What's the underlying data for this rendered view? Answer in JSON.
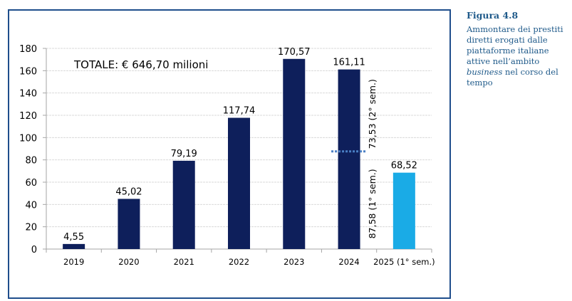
{
  "figure": {
    "label": "Figura 4.8",
    "text_before": "Ammontare dei prestiti diretti erogati dalle piattaforme italiane attive nell’ambito ",
    "text_italic": "business",
    "text_after": " nel corso del tempo"
  },
  "colors": {
    "frame": "#1f4e8c",
    "bar_primary": "#0e1f5b",
    "bar_highlight": "#1aabe6",
    "divider_dotted": "#4a7fc4",
    "grid": "#d9d9d9",
    "axis": "#a6a6a6",
    "text": "#000000",
    "caption": "#1f5a8a"
  },
  "chart_data": {
    "type": "bar",
    "title": "",
    "annotation_total": "TOTALE: € 646,70 milioni",
    "xlabel": "",
    "ylabel": "",
    "ylim": [
      0,
      180
    ],
    "yticks": [
      0,
      20,
      40,
      60,
      80,
      100,
      120,
      140,
      160,
      180
    ],
    "grid": true,
    "legend": "none",
    "categories": [
      "2019",
      "2020",
      "2021",
      "2022",
      "2023",
      "2024",
      "2025 (1° sem.)"
    ],
    "values": [
      4.55,
      45.02,
      79.19,
      117.74,
      170.57,
      161.11,
      68.52
    ],
    "value_labels": [
      "4,55",
      "45,02",
      "79,19",
      "117,74",
      "170,57",
      "161,11",
      "68,52"
    ],
    "highlight_category": "2025 (1° sem.)",
    "split_annotation": {
      "category": "2024",
      "split_value": 87.58,
      "lower_label": "87,58  (1° sem.)",
      "upper_label": "73,53 (2° sem.)"
    }
  }
}
